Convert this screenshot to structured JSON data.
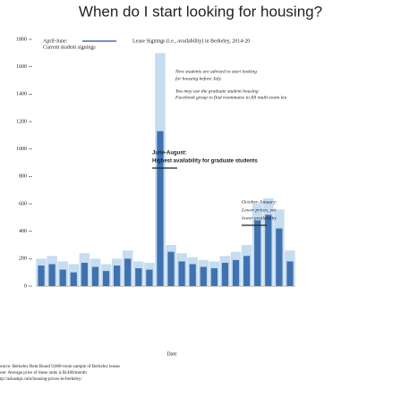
{
  "chart_data": {
    "type": "bar",
    "title": "When do I start looking for housing?",
    "x_label": "Date",
    "legend_heading": "April-June:",
    "categories": [
      null,
      null,
      null,
      null,
      null,
      null,
      null,
      null,
      null,
      null,
      null,
      null,
      null,
      null,
      null,
      null,
      null,
      null,
      null,
      null,
      null,
      null,
      null,
      null
    ],
    "series": [
      {
        "name": "Current student signings",
        "color": "#c6dcf0",
        "values": [
          200,
          220,
          180,
          160,
          240,
          200,
          160,
          200,
          260,
          180,
          170,
          1700,
          300,
          240,
          210,
          190,
          180,
          220,
          250,
          300,
          600,
          640,
          560,
          260
        ]
      },
      {
        "name": "Lease Signings (i.e., availability) in Berkeley, 2014-20",
        "color": "#3f72b0",
        "values": [
          150,
          160,
          120,
          100,
          170,
          140,
          110,
          150,
          200,
          130,
          120,
          1130,
          250,
          180,
          160,
          140,
          130,
          170,
          190,
          220,
          480,
          520,
          420,
          180
        ]
      }
    ],
    "ylim": [
      0,
      1800
    ],
    "yticks": [
      0,
      200,
      400,
      600,
      800,
      1000,
      1200,
      1400,
      1600,
      1800
    ],
    "annotations": [
      "New students are advised to start looking",
      "for housing before July.",
      "You may use the graduate student housing",
      "Facebook group to find roommates to fill multi-room lea",
      "June-August:",
      "Highest availability for graduate students",
      "October-January:",
      "Lower prices, yet",
      "lower availability"
    ],
    "notes": [
      "ource: Berkeley Rent Board 9,000-room sample of Berkeley leases",
      "ote: Average price of these units is $1400/month",
      "tp://askashpi.com/housing-prices-in-berkeley/"
    ]
  }
}
